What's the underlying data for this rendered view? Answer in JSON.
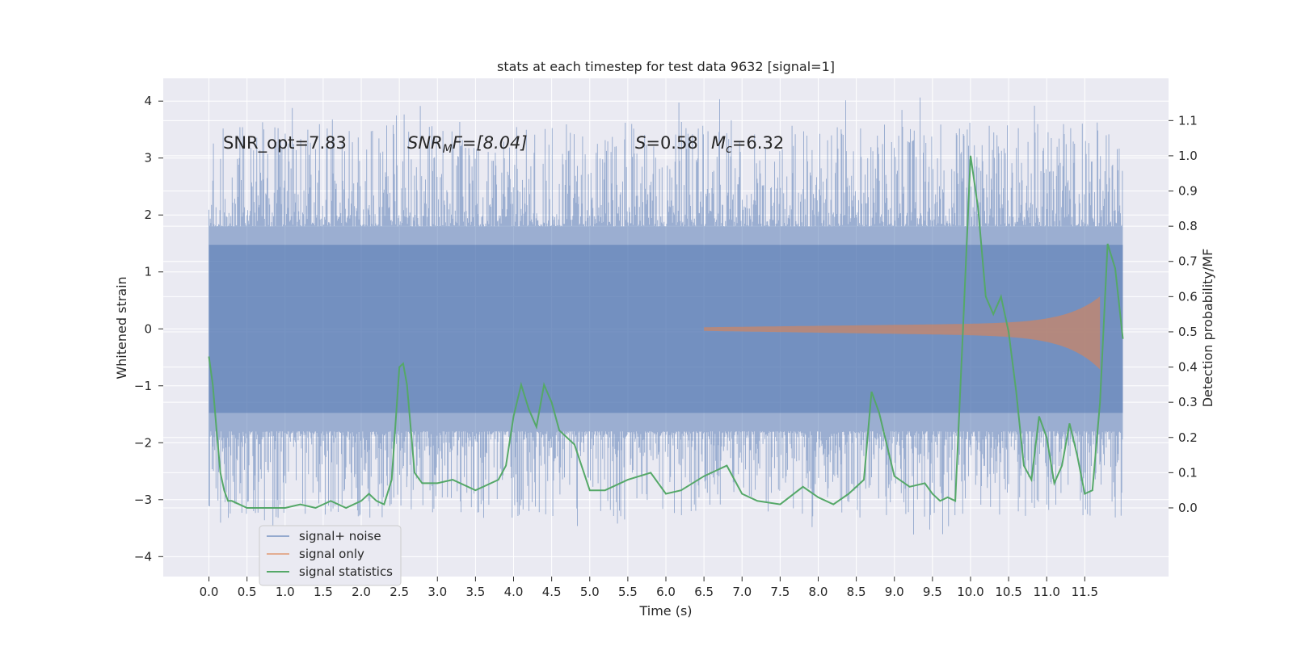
{
  "chart_data": {
    "type": "line",
    "title": "stats at each timestep for test data 9632 [signal=1]",
    "xlabel": "Time (s)",
    "ylabel_left": "Whitened strain",
    "ylabel_right": "Detection probability/MF",
    "x_range": [
      -0.6,
      12.6
    ],
    "x_ticks": [
      "0.0",
      "0.5",
      "1.0",
      "1.5",
      "2.0",
      "2.5",
      "3.0",
      "3.5",
      "4.0",
      "4.5",
      "5.0",
      "5.5",
      "6.0",
      "6.5",
      "7.0",
      "7.5",
      "8.0",
      "8.5",
      "9.0",
      "9.5",
      "10.0",
      "10.5",
      "11.0",
      "11.5"
    ],
    "y_left_range": [
      -4.35,
      4.4
    ],
    "y_left_ticks": [
      "4",
      "3",
      "2",
      "1",
      "0",
      "−1",
      "−2",
      "−3",
      "−4"
    ],
    "y_right_range": [
      -0.195,
      1.22
    ],
    "y_right_ticks": [
      "1.1",
      "1.0",
      "0.9",
      "0.8",
      "0.7",
      "0.6",
      "0.5",
      "0.4",
      "0.3",
      "0.2",
      "0.1",
      "0.0"
    ],
    "grid": true,
    "legend_position": "lower-left",
    "annotations": {
      "snr_opt": "SNR_opt=7.83",
      "snr_mf_label": "SNR",
      "snr_mf_sub": "M",
      "snr_mf_value": "F=[8.04]",
      "s_label": "S",
      "s_value": "=0.58",
      "mc_label": "M",
      "mc_sub": "c",
      "mc_value": "=6.32"
    },
    "colors": {
      "background": "#eaeaf2",
      "grid": "#ffffff",
      "signal_noise": "#4c72b0",
      "signal_only": "#dd8452",
      "signal_statistics": "#55a868"
    },
    "series": [
      {
        "name": "signal+ noise",
        "kind": "strain",
        "x_start": 0.0,
        "x_end": 12.0,
        "envelope_low": -1.8,
        "envelope_high": 1.8,
        "peak_high": 4.1,
        "peak_low": -3.7
      },
      {
        "name": "signal only",
        "kind": "chirp",
        "x_start": 6.5,
        "x_end": 11.7,
        "peak_amplitude": 0.95
      },
      {
        "name": "signal statistics",
        "kind": "line",
        "x": [
          0.0,
          0.05,
          0.1,
          0.15,
          0.2,
          0.25,
          0.3,
          0.5,
          0.8,
          1.0,
          1.2,
          1.4,
          1.6,
          1.8,
          2.0,
          2.1,
          2.2,
          2.3,
          2.4,
          2.5,
          2.55,
          2.6,
          2.7,
          2.8,
          2.9,
          3.0,
          3.2,
          3.5,
          3.8,
          3.9,
          4.0,
          4.1,
          4.2,
          4.3,
          4.4,
          4.5,
          4.6,
          4.8,
          5.0,
          5.2,
          5.5,
          5.8,
          6.0,
          6.2,
          6.5,
          6.8,
          7.0,
          7.2,
          7.5,
          7.8,
          8.0,
          8.2,
          8.4,
          8.6,
          8.7,
          8.8,
          8.9,
          9.0,
          9.2,
          9.4,
          9.5,
          9.6,
          9.7,
          9.8,
          9.9,
          10.0,
          10.1,
          10.2,
          10.3,
          10.4,
          10.5,
          10.6,
          10.7,
          10.8,
          10.9,
          11.0,
          11.1,
          11.2,
          11.3,
          11.4,
          11.5,
          11.6,
          11.7,
          11.8,
          11.9,
          12.0
        ],
        "y": [
          0.43,
          0.35,
          0.22,
          0.1,
          0.05,
          0.02,
          0.02,
          0.0,
          0.0,
          0.0,
          0.01,
          0.0,
          0.02,
          0.0,
          0.02,
          0.04,
          0.02,
          0.01,
          0.08,
          0.4,
          0.41,
          0.35,
          0.1,
          0.07,
          0.07,
          0.07,
          0.08,
          0.05,
          0.08,
          0.12,
          0.26,
          0.35,
          0.28,
          0.23,
          0.35,
          0.3,
          0.22,
          0.18,
          0.05,
          0.05,
          0.08,
          0.1,
          0.04,
          0.05,
          0.09,
          0.12,
          0.04,
          0.02,
          0.01,
          0.06,
          0.03,
          0.01,
          0.04,
          0.08,
          0.33,
          0.27,
          0.18,
          0.09,
          0.06,
          0.07,
          0.04,
          0.02,
          0.03,
          0.02,
          0.5,
          1.0,
          0.85,
          0.6,
          0.55,
          0.6,
          0.5,
          0.33,
          0.12,
          0.08,
          0.26,
          0.2,
          0.07,
          0.12,
          0.24,
          0.15,
          0.04,
          0.05,
          0.3,
          0.75,
          0.68,
          0.48
        ]
      }
    ]
  }
}
